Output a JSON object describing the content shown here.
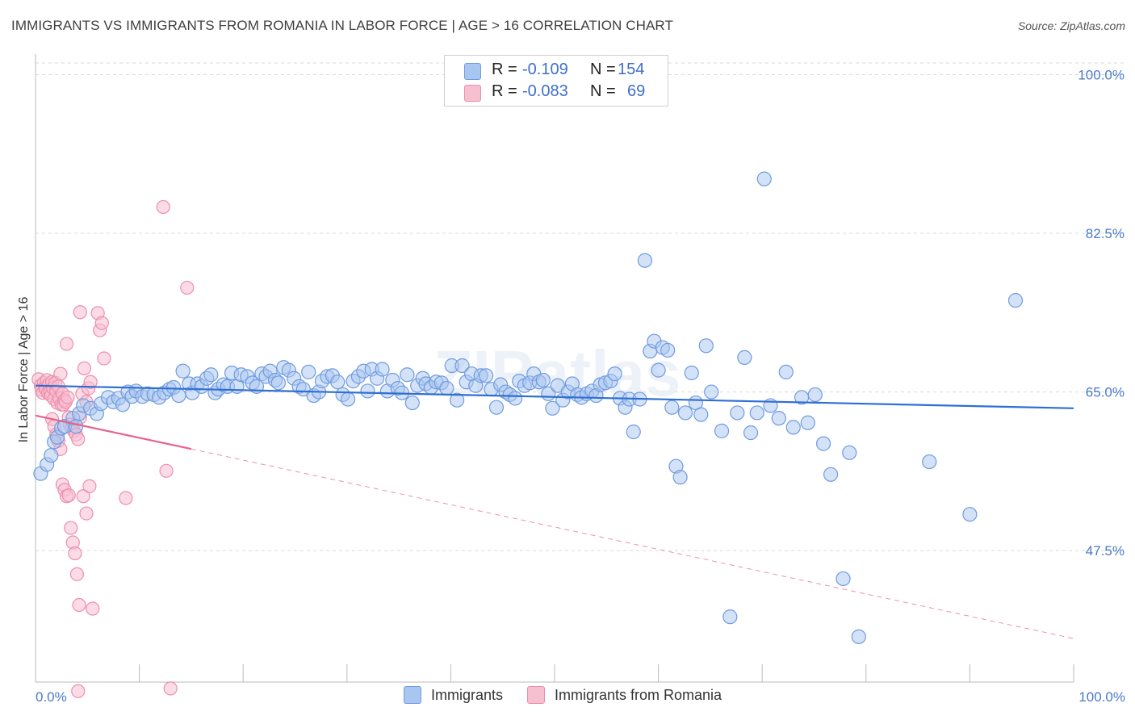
{
  "header": {
    "title": "IMMIGRANTS VS IMMIGRANTS FROM ROMANIA IN LABOR FORCE | AGE > 16 CORRELATION CHART",
    "source": "Source: ZipAtlas.com"
  },
  "watermark": "ZIPatlas",
  "legend": {
    "rows": [
      {
        "r_label": "R =",
        "r_value": "-0.109",
        "n_label": "N =",
        "n_value": "154",
        "color": "#8fb2e8"
      },
      {
        "r_label": "R =",
        "r_value": "-0.083",
        "n_label": "N =",
        "n_value": "69",
        "color": "#f4a9c0"
      }
    ]
  },
  "bottom_legend": {
    "items": [
      {
        "label": "Immigrants",
        "color": "#8fb2e8"
      },
      {
        "label": "Immigrants from Romania",
        "color": "#f4a9c0"
      }
    ]
  },
  "chart_data": {
    "type": "scatter",
    "title": "IMMIGRANTS VS IMMIGRANTS FROM ROMANIA IN LABOR FORCE | AGE > 16 CORRELATION CHART",
    "xlabel": "",
    "ylabel": "In Labor Force | Age > 16",
    "xlim": [
      0,
      100
    ],
    "ylim": [
      33,
      102
    ],
    "x_tick_labels": [
      "0.0%",
      "100.0%"
    ],
    "y_ticks": [
      {
        "value": 100,
        "label": "100.0%"
      },
      {
        "value": 82.5,
        "label": "82.5%"
      },
      {
        "value": 65,
        "label": "65.0%"
      },
      {
        "value": 47.5,
        "label": "47.5%"
      }
    ],
    "colors": {
      "blue_fill": "#a9c6f0",
      "blue_stroke": "#6f9be0",
      "blue_line": "#2f6fd4",
      "pink_fill": "#f7c0d1",
      "pink_stroke": "#ee8eac",
      "pink_line": "#e8628a",
      "grid": "#d9d9d9",
      "tick": "#4a79c9"
    },
    "series": [
      {
        "name": "Immigrants",
        "R": -0.109,
        "N": 154,
        "trend": {
          "x": [
            0,
            100
          ],
          "y": [
            65.7,
            63.2
          ]
        },
        "points": [
          [
            0.5,
            56
          ],
          [
            1.1,
            57
          ],
          [
            1.5,
            58
          ],
          [
            1.8,
            59.5
          ],
          [
            2.1,
            60
          ],
          [
            2.5,
            61
          ],
          [
            2.8,
            61.2
          ],
          [
            3.6,
            62.1
          ],
          [
            3.9,
            61.2
          ],
          [
            4.2,
            62.6
          ],
          [
            4.6,
            63.5
          ],
          [
            5.3,
            63.2
          ],
          [
            5.9,
            62.6
          ],
          [
            6.3,
            63.7
          ],
          [
            7.0,
            64.4
          ],
          [
            7.5,
            63.9
          ],
          [
            8.0,
            64.3
          ],
          [
            8.4,
            63.6
          ],
          [
            8.9,
            65.0
          ],
          [
            9.3,
            64.5
          ],
          [
            9.7,
            65.1
          ],
          [
            10.3,
            64.5
          ],
          [
            10.8,
            64.8
          ],
          [
            11.4,
            64.7
          ],
          [
            11.9,
            64.4
          ],
          [
            12.4,
            64.9
          ],
          [
            12.9,
            65.3
          ],
          [
            13.3,
            65.5
          ],
          [
            13.8,
            64.6
          ],
          [
            14.2,
            67.3
          ],
          [
            14.8,
            65.9
          ],
          [
            15.1,
            64.9
          ],
          [
            15.6,
            65.9
          ],
          [
            16.0,
            65.6
          ],
          [
            16.5,
            66.5
          ],
          [
            16.9,
            66.9
          ],
          [
            17.3,
            64.9
          ],
          [
            17.6,
            65.3
          ],
          [
            18.1,
            65.8
          ],
          [
            18.5,
            65.6
          ],
          [
            18.9,
            67.1
          ],
          [
            19.4,
            65.6
          ],
          [
            19.8,
            66.9
          ],
          [
            20.4,
            66.7
          ],
          [
            20.9,
            66.0
          ],
          [
            21.3,
            65.6
          ],
          [
            21.8,
            67.0
          ],
          [
            22.2,
            66.7
          ],
          [
            22.6,
            67.3
          ],
          [
            23.1,
            66.3
          ],
          [
            23.4,
            66.0
          ],
          [
            23.9,
            67.7
          ],
          [
            24.4,
            67.4
          ],
          [
            24.9,
            66.5
          ],
          [
            25.4,
            65.6
          ],
          [
            25.8,
            65.3
          ],
          [
            26.3,
            67.2
          ],
          [
            26.8,
            64.6
          ],
          [
            27.3,
            65.0
          ],
          [
            27.6,
            66.2
          ],
          [
            28.1,
            66.7
          ],
          [
            28.6,
            66.8
          ],
          [
            29.1,
            66.1
          ],
          [
            29.6,
            64.7
          ],
          [
            30.1,
            64.2
          ],
          [
            30.6,
            66.2
          ],
          [
            31.1,
            66.7
          ],
          [
            31.6,
            67.3
          ],
          [
            32.0,
            65.1
          ],
          [
            32.4,
            67.5
          ],
          [
            32.9,
            66.5
          ],
          [
            33.4,
            67.5
          ],
          [
            33.9,
            65.1
          ],
          [
            34.4,
            66.3
          ],
          [
            34.9,
            65.4
          ],
          [
            35.3,
            64.9
          ],
          [
            35.8,
            66.9
          ],
          [
            36.3,
            63.8
          ],
          [
            36.8,
            65.7
          ],
          [
            37.3,
            66.5
          ],
          [
            37.6,
            65.9
          ],
          [
            38.1,
            65.5
          ],
          [
            38.6,
            66.1
          ],
          [
            39.1,
            66.0
          ],
          [
            39.6,
            65.4
          ],
          [
            40.1,
            67.9
          ],
          [
            40.6,
            64.1
          ],
          [
            41.1,
            67.9
          ],
          [
            41.5,
            66.1
          ],
          [
            42.0,
            67.0
          ],
          [
            42.4,
            65.7
          ],
          [
            42.9,
            66.8
          ],
          [
            43.4,
            66.8
          ],
          [
            43.9,
            65.3
          ],
          [
            44.4,
            63.3
          ],
          [
            44.8,
            65.8
          ],
          [
            45.3,
            65.0
          ],
          [
            45.7,
            64.7
          ],
          [
            46.2,
            64.3
          ],
          [
            46.6,
            66.2
          ],
          [
            47.1,
            65.7
          ],
          [
            47.6,
            66.0
          ],
          [
            48.0,
            67.0
          ],
          [
            48.5,
            66.1
          ],
          [
            48.9,
            66.3
          ],
          [
            49.4,
            64.8
          ],
          [
            49.8,
            63.2
          ],
          [
            50.3,
            65.7
          ],
          [
            50.8,
            64.1
          ],
          [
            51.3,
            65.0
          ],
          [
            51.7,
            65.9
          ],
          [
            52.2,
            64.7
          ],
          [
            52.6,
            64.4
          ],
          [
            53.1,
            64.8
          ],
          [
            53.6,
            65.1
          ],
          [
            54.0,
            64.6
          ],
          [
            54.4,
            65.8
          ],
          [
            54.9,
            66.0
          ],
          [
            55.4,
            66.2
          ],
          [
            55.8,
            67.0
          ],
          [
            56.3,
            64.3
          ],
          [
            56.8,
            63.3
          ],
          [
            57.2,
            64.2
          ],
          [
            57.6,
            60.6
          ],
          [
            58.2,
            64.2
          ],
          [
            58.7,
            79.5
          ],
          [
            59.2,
            69.5
          ],
          [
            59.6,
            70.6
          ],
          [
            60.0,
            67.4
          ],
          [
            60.4,
            69.9
          ],
          [
            60.9,
            69.6
          ],
          [
            61.3,
            63.3
          ],
          [
            61.7,
            56.8
          ],
          [
            62.1,
            55.6
          ],
          [
            62.6,
            62.7
          ],
          [
            63.2,
            67.1
          ],
          [
            63.6,
            63.8
          ],
          [
            64.1,
            62.5
          ],
          [
            64.6,
            70.1
          ],
          [
            65.1,
            65.0
          ],
          [
            66.1,
            60.7
          ],
          [
            66.9,
            40.2
          ],
          [
            67.6,
            62.7
          ],
          [
            68.3,
            68.8
          ],
          [
            68.9,
            60.5
          ],
          [
            69.5,
            62.7
          ],
          [
            70.2,
            88.5
          ],
          [
            70.8,
            63.5
          ],
          [
            71.6,
            62.1
          ],
          [
            72.3,
            67.2
          ],
          [
            73.0,
            61.1
          ],
          [
            73.8,
            64.4
          ],
          [
            74.4,
            61.6
          ],
          [
            75.1,
            64.7
          ],
          [
            75.9,
            59.3
          ],
          [
            76.6,
            55.9
          ],
          [
            77.8,
            44.4
          ],
          [
            78.4,
            58.3
          ],
          [
            79.3,
            38.0
          ],
          [
            86.1,
            57.3
          ],
          [
            90.0,
            51.5
          ],
          [
            94.4,
            75.1
          ]
        ]
      },
      {
        "name": "Immigrants from Romania",
        "R": -0.083,
        "N": 69,
        "trend": {
          "x": [
            0,
            100
          ],
          "y": [
            62.4,
            37.8
          ],
          "solid_until": 15
        },
        "points": [
          [
            0.3,
            66.4
          ],
          [
            0.5,
            65.7
          ],
          [
            0.6,
            65.2
          ],
          [
            0.7,
            64.9
          ],
          [
            0.8,
            66.0
          ],
          [
            0.9,
            65.5
          ],
          [
            1.0,
            65.3
          ],
          [
            1.1,
            66.3
          ],
          [
            1.2,
            64.9
          ],
          [
            1.3,
            65.8
          ],
          [
            1.4,
            65.0
          ],
          [
            1.5,
            64.6
          ],
          [
            1.6,
            66.1
          ],
          [
            1.7,
            65.4
          ],
          [
            1.8,
            64.2
          ],
          [
            1.9,
            66.0
          ],
          [
            2.0,
            65.1
          ],
          [
            2.1,
            63.8
          ],
          [
            2.2,
            65.6
          ],
          [
            2.3,
            64.3
          ],
          [
            2.4,
            67.0
          ],
          [
            2.5,
            63.6
          ],
          [
            2.6,
            64.8
          ],
          [
            2.7,
            63.6
          ],
          [
            2.8,
            64.1
          ],
          [
            2.9,
            63.9
          ],
          [
            3.0,
            70.3
          ],
          [
            3.1,
            64.4
          ],
          [
            3.2,
            62.2
          ],
          [
            3.3,
            61.4
          ],
          [
            3.5,
            61.0
          ],
          [
            3.7,
            60.7
          ],
          [
            3.9,
            60.3
          ],
          [
            4.1,
            59.8
          ],
          [
            4.3,
            62.2
          ],
          [
            4.5,
            64.8
          ],
          [
            4.7,
            67.6
          ],
          [
            4.9,
            63.9
          ],
          [
            5.1,
            65.4
          ],
          [
            5.3,
            66.1
          ],
          [
            1.6,
            62.0
          ],
          [
            1.8,
            61.2
          ],
          [
            2.0,
            60.3
          ],
          [
            2.2,
            59.6
          ],
          [
            2.4,
            58.7
          ],
          [
            2.6,
            54.8
          ],
          [
            2.8,
            54.2
          ],
          [
            3.0,
            53.5
          ],
          [
            3.2,
            53.6
          ],
          [
            3.4,
            50.0
          ],
          [
            3.6,
            48.4
          ],
          [
            3.8,
            47.2
          ],
          [
            4.0,
            44.9
          ],
          [
            4.2,
            41.5
          ],
          [
            4.6,
            53.5
          ],
          [
            4.9,
            51.6
          ],
          [
            5.2,
            54.6
          ],
          [
            5.5,
            41.1
          ],
          [
            6.0,
            73.7
          ],
          [
            6.2,
            71.8
          ],
          [
            6.4,
            72.6
          ],
          [
            6.6,
            68.7
          ],
          [
            8.7,
            53.3
          ],
          [
            12.3,
            85.4
          ],
          [
            12.6,
            56.3
          ],
          [
            13.0,
            32.3
          ],
          [
            14.6,
            76.5
          ],
          [
            4.3,
            73.8
          ],
          [
            4.1,
            32.0
          ]
        ]
      }
    ]
  }
}
